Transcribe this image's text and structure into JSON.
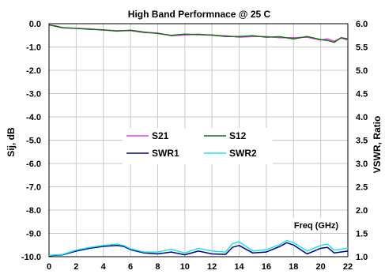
{
  "chart_data": {
    "type": "line",
    "title": "High Band Performnace @ 25 C",
    "xlabel": "",
    "ylabel": "Sij, dB",
    "y2label": "VSWR, Ratio",
    "annotation": "Freq (GHz)",
    "xlim": [
      0,
      22
    ],
    "ylim": [
      -10,
      0
    ],
    "y2lim": [
      1,
      6
    ],
    "x_ticks": [
      "0",
      "2",
      "4",
      "6",
      "8",
      "10",
      "12",
      "14",
      "16",
      "18",
      "20",
      "22"
    ],
    "y_ticks": [
      "0.0",
      "-1.0",
      "-2.0",
      "-3.0",
      "-4.0",
      "-5.0",
      "-6.0",
      "-7.0",
      "-8.0",
      "-9.0",
      "-10.0"
    ],
    "y2_ticks": [
      "6.0",
      "5.5",
      "5.0",
      "4.5",
      "4.0",
      "3.5",
      "3.0",
      "2.5",
      "2.0",
      "1.5",
      "1.0"
    ],
    "grid": true,
    "legend_position": "center",
    "series": [
      {
        "name": "S21",
        "axis": "left",
        "color": "#e040e0",
        "x": [
          0,
          0.5,
          1,
          2,
          3,
          4,
          5,
          6,
          7,
          8,
          9,
          10,
          11,
          12,
          13,
          14,
          15,
          16,
          17,
          18,
          19,
          20,
          20.5,
          21,
          21.5,
          22
        ],
        "y": [
          -0.05,
          -0.12,
          -0.18,
          -0.2,
          -0.22,
          -0.28,
          -0.3,
          -0.3,
          -0.38,
          -0.4,
          -0.52,
          -0.48,
          -0.45,
          -0.5,
          -0.52,
          -0.58,
          -0.55,
          -0.55,
          -0.6,
          -0.6,
          -0.58,
          -0.7,
          -0.65,
          -0.75,
          -0.62,
          -0.7
        ]
      },
      {
        "name": "S12",
        "axis": "left",
        "color": "#1a6b1a",
        "x": [
          0,
          0.5,
          1,
          2,
          3,
          4,
          5,
          6,
          7,
          8,
          9,
          10,
          11,
          12,
          13,
          14,
          15,
          16,
          17,
          18,
          19,
          20,
          20.5,
          21,
          21.5,
          22
        ],
        "y": [
          -0.05,
          -0.1,
          -0.17,
          -0.2,
          -0.24,
          -0.26,
          -0.32,
          -0.28,
          -0.36,
          -0.42,
          -0.5,
          -0.45,
          -0.47,
          -0.48,
          -0.55,
          -0.55,
          -0.52,
          -0.58,
          -0.56,
          -0.65,
          -0.55,
          -0.68,
          -0.72,
          -0.8,
          -0.6,
          -0.65
        ]
      },
      {
        "name": "SWR1",
        "axis": "right",
        "color": "#000080",
        "x": [
          0,
          1,
          2,
          3,
          4,
          5,
          5.5,
          6,
          7,
          8,
          9,
          10,
          11,
          12,
          13,
          13.5,
          14,
          15,
          16,
          17,
          17.5,
          18,
          19,
          20,
          20.5,
          21,
          22
        ],
        "y": [
          1.02,
          1.04,
          1.12,
          1.18,
          1.22,
          1.24,
          1.22,
          1.15,
          1.08,
          1.06,
          1.1,
          1.04,
          1.12,
          1.06,
          1.05,
          1.2,
          1.24,
          1.08,
          1.1,
          1.22,
          1.3,
          1.25,
          1.06,
          1.18,
          1.2,
          1.08,
          1.12
        ]
      },
      {
        "name": "SWR2",
        "axis": "right",
        "color": "#22e0e8",
        "x": [
          0,
          1,
          2,
          3,
          4,
          5,
          5.5,
          6,
          7,
          8,
          9,
          10,
          11,
          12,
          13,
          13.5,
          14,
          15,
          16,
          17,
          17.5,
          18,
          19,
          20,
          20.5,
          21,
          22
        ],
        "y": [
          1.03,
          1.05,
          1.14,
          1.2,
          1.24,
          1.27,
          1.24,
          1.17,
          1.1,
          1.1,
          1.16,
          1.08,
          1.18,
          1.12,
          1.1,
          1.28,
          1.32,
          1.12,
          1.15,
          1.26,
          1.35,
          1.3,
          1.12,
          1.24,
          1.27,
          1.14,
          1.18
        ]
      }
    ]
  }
}
